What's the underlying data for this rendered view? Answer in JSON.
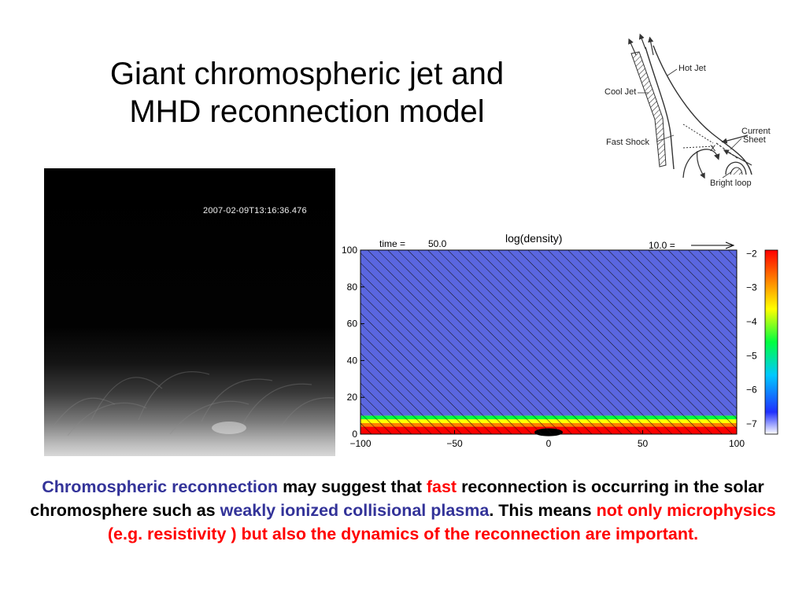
{
  "title": {
    "line1": "Giant chromospheric jet and",
    "line2": "MHD reconnection model"
  },
  "schematic": {
    "labels": {
      "hot_jet": "Hot Jet",
      "cool_jet": "Cool Jet",
      "fast_shock": "Fast Shock",
      "current": "Current",
      "sheet": "Sheet",
      "x_point": "X",
      "bright_loop": "Bright loop"
    }
  },
  "observation": {
    "timestamp": "2007-02-09T13:16:36.476"
  },
  "simulation": {
    "time_label": "time =",
    "time_value": "50.0",
    "title": "log(density)",
    "vector_label": "10.0 =",
    "colors": {
      "background_layer": "#5a66e0",
      "colorbar_stops": [
        "#ffffff",
        "#2030ff",
        "#00c8ff",
        "#00ff40",
        "#ffff00",
        "#ff8000",
        "#ff0000"
      ]
    }
  },
  "chart_data": {
    "type": "heatmap",
    "title": "log(density)",
    "x_ticks": [
      "−100",
      "−50",
      "0",
      "50",
      "100"
    ],
    "y_ticks": [
      "0",
      "20",
      "40",
      "60",
      "80",
      "100"
    ],
    "xlim": [
      -100,
      100
    ],
    "ylim": [
      0,
      100
    ],
    "colorbar_ticks": [
      "−2",
      "−3",
      "−4",
      "−5",
      "−6",
      "−7"
    ],
    "colorbar_range": [
      -7.3,
      -1.9
    ],
    "layers": [
      {
        "y_range": [
          0,
          5
        ],
        "log_density": -2
      },
      {
        "y_range": [
          5,
          10
        ],
        "log_density": -4
      },
      {
        "y_range": [
          10,
          100
        ],
        "log_density": -6.6
      }
    ]
  },
  "caption": {
    "p1": "Chromospheric reconnection",
    "p2": " may suggest that ",
    "p3": "fast",
    "p4": " reconnection is occurring in the solar chromosphere such as ",
    "p5": "weakly ionized collisional plasma",
    "p6": ". This means ",
    "p7": "not only microphysics (e.g. resistivity ) but also the dynamics of the reconnection are important."
  }
}
